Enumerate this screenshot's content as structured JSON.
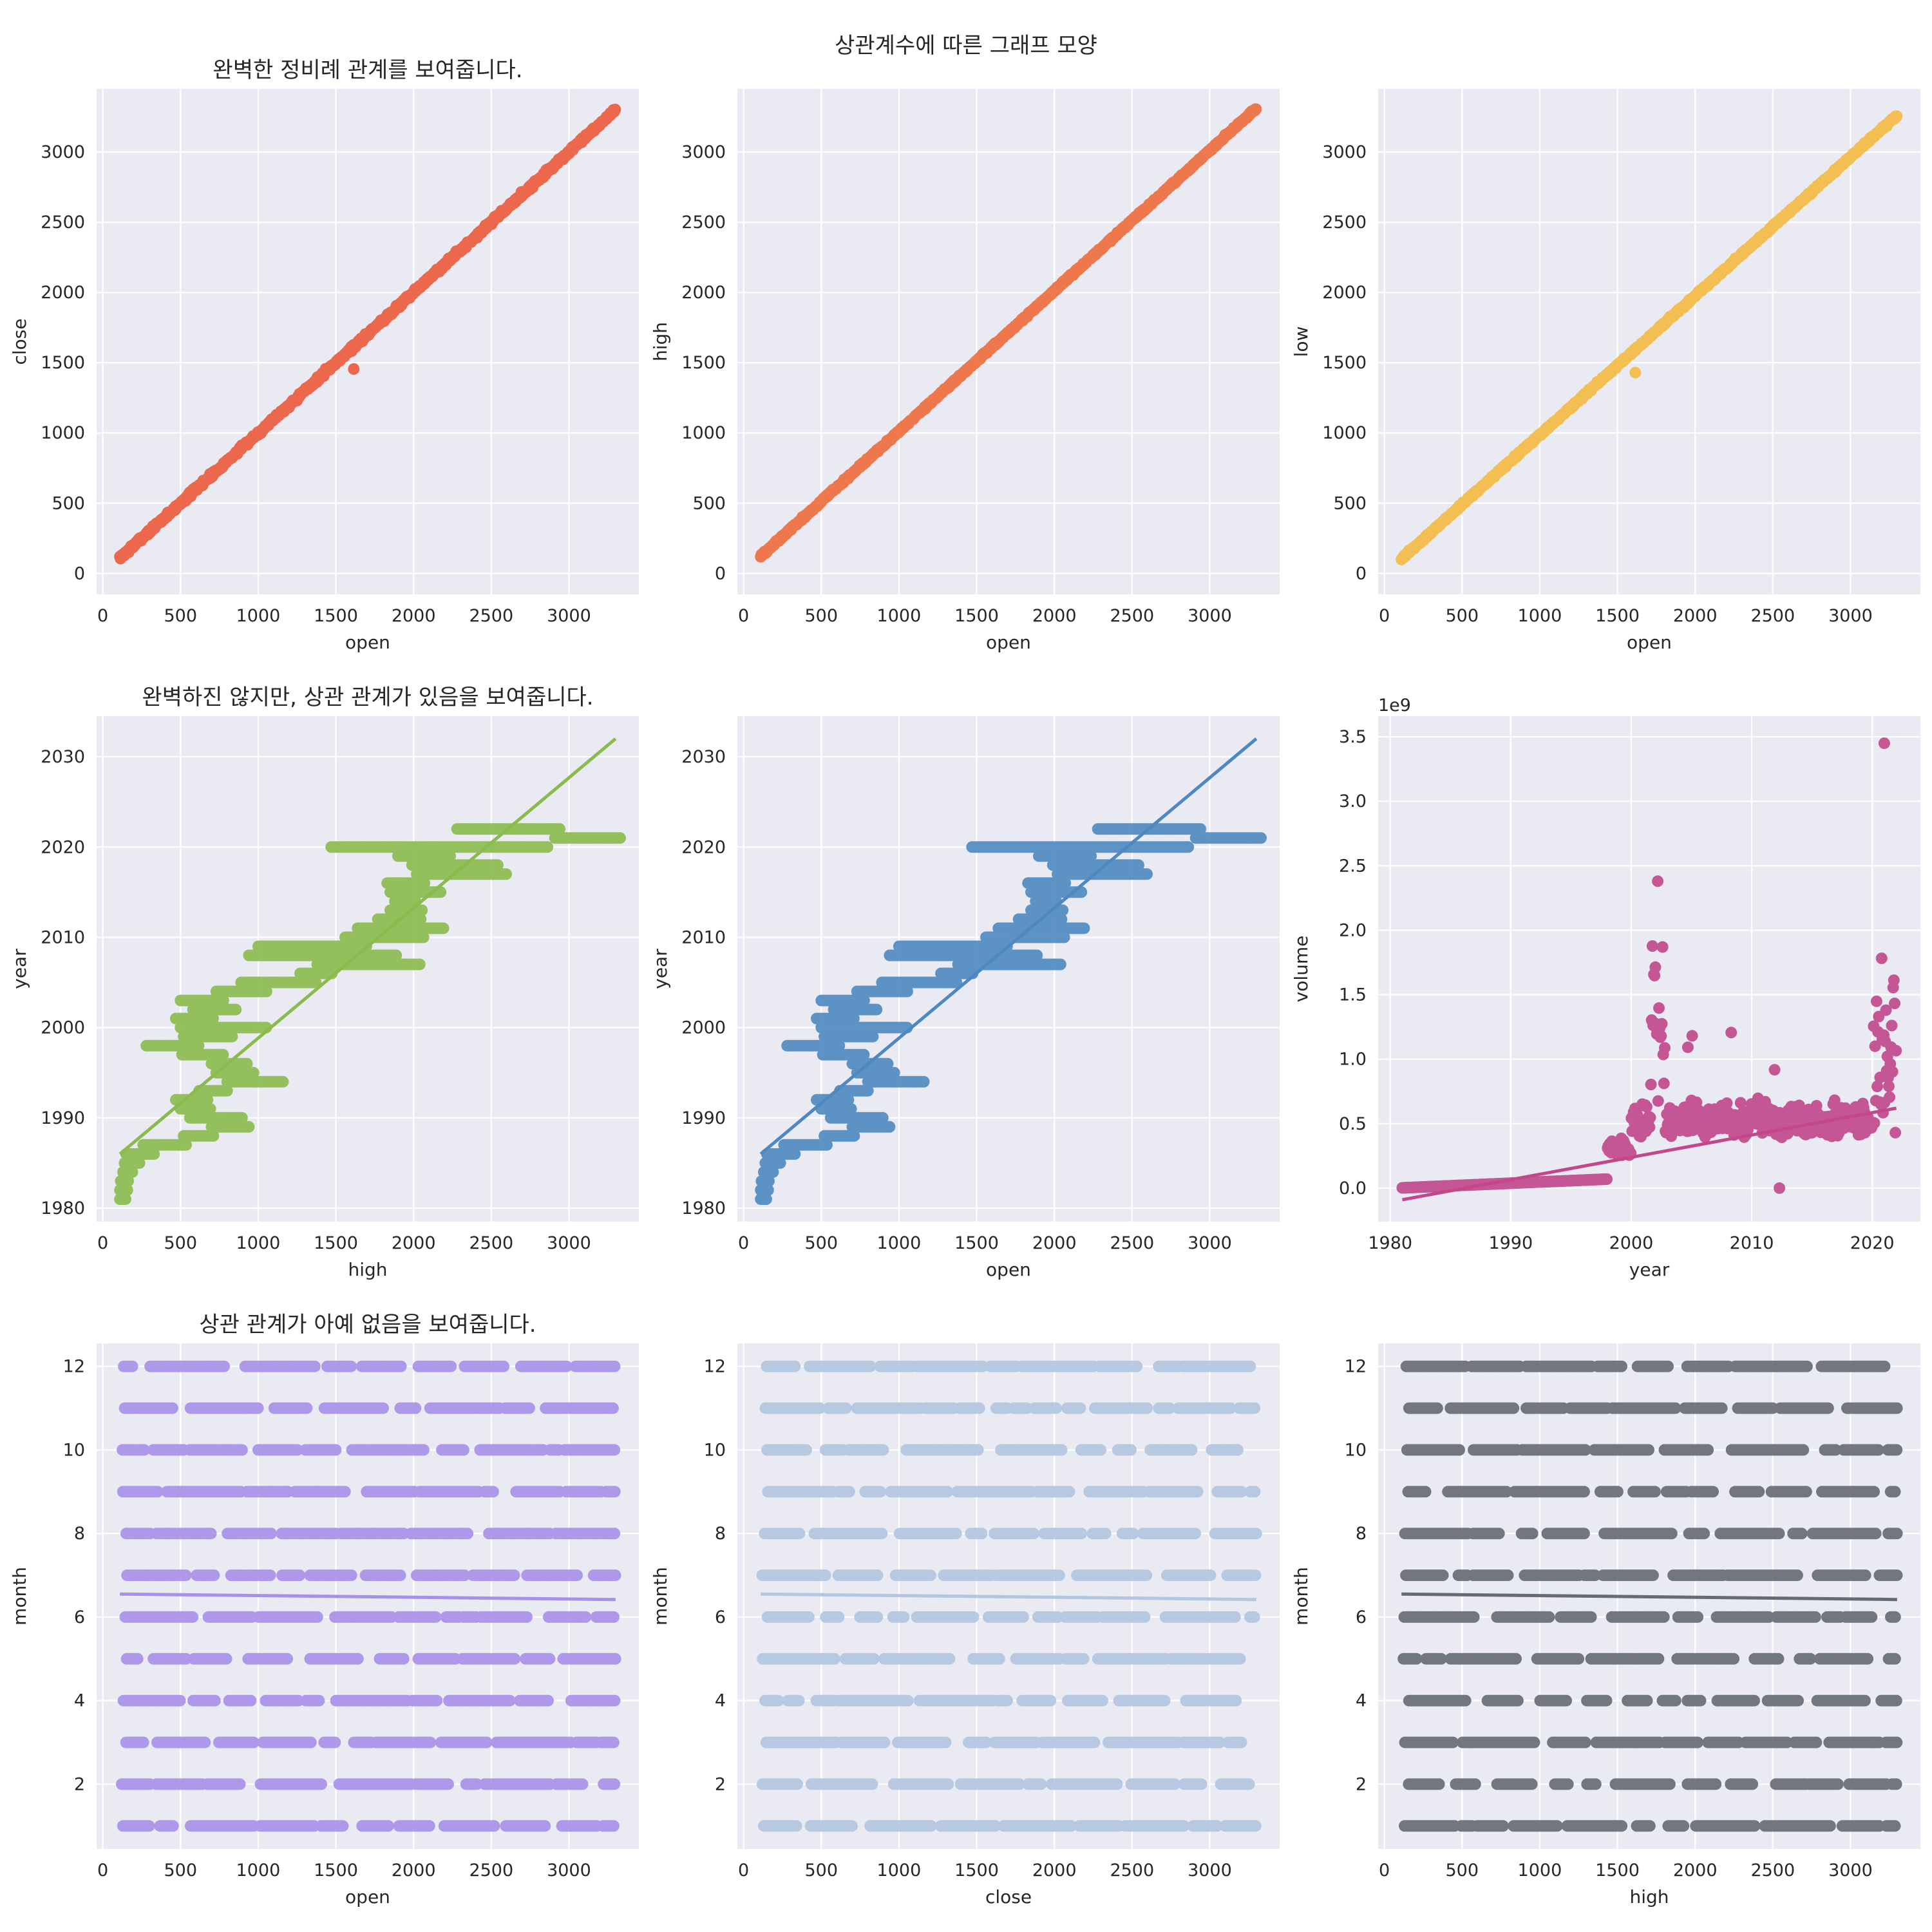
{
  "figure": {
    "suptitle": "상관계수에 따른 그래프 모양"
  },
  "chart_data": [
    {
      "type": "scatter",
      "title": "완벽한 정비례 관계를 보여줍니다.",
      "xlabel": "open",
      "ylabel": "close",
      "xlim": [
        -40,
        3450
      ],
      "ylim": [
        -150,
        3450
      ],
      "xticks": [
        0,
        500,
        1000,
        1500,
        2000,
        2500,
        3000
      ],
      "yticks": [
        0,
        500,
        1000,
        1500,
        2000,
        2500,
        3000
      ],
      "color": "#ec5a3c",
      "grid": true,
      "background": "#eaeaf2",
      "series": [
        {
          "kind": "linear",
          "x_range": [
            110,
            3300
          ],
          "slope": 1.0,
          "intercept": 0,
          "noise": 15
        }
      ],
      "outliers": [
        {
          "x": 1615,
          "y": 1455
        }
      ],
      "regression": null
    },
    {
      "type": "scatter",
      "title": "",
      "xlabel": "open",
      "ylabel": "high",
      "xlim": [
        -40,
        3450
      ],
      "ylim": [
        -150,
        3450
      ],
      "xticks": [
        0,
        500,
        1000,
        1500,
        2000,
        2500,
        3000
      ],
      "yticks": [
        0,
        500,
        1000,
        1500,
        2000,
        2500,
        3000
      ],
      "color": "#ef6c3c",
      "grid": true,
      "background": "#eaeaf2",
      "series": [
        {
          "kind": "linear",
          "x_range": [
            110,
            3300
          ],
          "slope": 1.0,
          "intercept": 12,
          "noise": 8
        }
      ],
      "outliers": [],
      "regression": null
    },
    {
      "type": "scatter",
      "title": "",
      "xlabel": "open",
      "ylabel": "low",
      "xlim": [
        -40,
        3450
      ],
      "ylim": [
        -150,
        3450
      ],
      "xticks": [
        0,
        500,
        1000,
        1500,
        2000,
        2500,
        3000
      ],
      "yticks": [
        0,
        500,
        1000,
        1500,
        2000,
        2500,
        3000
      ],
      "color": "#f5bb42",
      "grid": true,
      "background": "#eaeaf2",
      "series": [
        {
          "kind": "linear",
          "x_range": [
            110,
            3300
          ],
          "slope": 0.99,
          "intercept": -5,
          "noise": 9
        }
      ],
      "outliers": [
        {
          "x": 1615,
          "y": 1430
        }
      ],
      "regression": null
    },
    {
      "type": "scatter",
      "title": "완벽하진 않지만, 상관 관계가 있음을 보여줍니다.",
      "xlabel": "high",
      "ylabel": "year",
      "xlim": [
        -40,
        3450
      ],
      "ylim": [
        1978.5,
        2034.5
      ],
      "xticks": [
        0,
        500,
        1000,
        1500,
        2000,
        2500,
        3000
      ],
      "yticks": [
        1980,
        1990,
        2000,
        2010,
        2020,
        2030
      ],
      "color": "#8abb4c",
      "grid": true,
      "background": "#eaeaf2",
      "series": [
        {
          "kind": "year_bands"
        }
      ],
      "outliers": [],
      "regression": {
        "x0": 110,
        "y0": 1986.0,
        "x1": 3300,
        "y1": 2032.0
      }
    },
    {
      "type": "scatter",
      "title": "",
      "xlabel": "open",
      "ylabel": "year",
      "xlim": [
        -40,
        3450
      ],
      "ylim": [
        1978.5,
        2034.5
      ],
      "xticks": [
        0,
        500,
        1000,
        1500,
        2000,
        2500,
        3000
      ],
      "yticks": [
        1980,
        1990,
        2000,
        2010,
        2020,
        2030
      ],
      "color": "#4d89c0",
      "grid": true,
      "background": "#eaeaf2",
      "series": [
        {
          "kind": "year_bands"
        }
      ],
      "outliers": [],
      "regression": {
        "x0": 110,
        "y0": 1986.0,
        "x1": 3300,
        "y1": 2032.0
      }
    },
    {
      "type": "scatter",
      "title": "",
      "xlabel": "year",
      "ylabel": "volume",
      "offset_label": "1e9",
      "xlim": [
        1979,
        2024
      ],
      "ylim": [
        -0.26,
        3.66
      ],
      "xticks": [
        1980,
        1990,
        2000,
        2010,
        2020
      ],
      "yticks": [
        0.0,
        0.5,
        1.0,
        1.5,
        2.0,
        2.5,
        3.0,
        3.5
      ],
      "ytick_format": "0.1f",
      "color": "#c2478b",
      "grid": true,
      "background": "#eaeaf2",
      "series": [
        {
          "kind": "volume"
        }
      ],
      "outliers": [
        {
          "x": 2021.0,
          "y": 3.45
        },
        {
          "x": 2002.2,
          "y": 2.38
        },
        {
          "x": 2012.3,
          "y": 0.0
        }
      ],
      "regression": {
        "x0": 1981,
        "y0": -0.09,
        "x1": 2022,
        "y1": 0.62
      }
    },
    {
      "type": "scatter",
      "title": "상관 관계가 아예 없음을 보여줍니다.",
      "xlabel": "open",
      "ylabel": "month",
      "xlim": [
        -40,
        3450
      ],
      "ylim": [
        0.45,
        12.55
      ],
      "xticks": [
        0,
        500,
        1000,
        1500,
        2000,
        2500,
        3000
      ],
      "yticks": [
        2,
        4,
        6,
        8,
        10,
        12
      ],
      "color": "#a890ea",
      "grid": true,
      "background": "#eaeaf2",
      "series": [
        {
          "kind": "month_rows",
          "seed": 11
        }
      ],
      "outliers": [],
      "regression": {
        "x0": 110,
        "y0": 6.55,
        "x1": 3300,
        "y1": 6.42
      }
    },
    {
      "type": "scatter",
      "title": "",
      "xlabel": "close",
      "ylabel": "month",
      "xlim": [
        -40,
        3450
      ],
      "ylim": [
        0.45,
        12.55
      ],
      "xticks": [
        0,
        500,
        1000,
        1500,
        2000,
        2500,
        3000
      ],
      "yticks": [
        2,
        4,
        6,
        8,
        10,
        12
      ],
      "color": "#b2c6e0",
      "grid": true,
      "background": "#eaeaf2",
      "series": [
        {
          "kind": "month_rows",
          "seed": 23
        }
      ],
      "outliers": [],
      "regression": {
        "x0": 110,
        "y0": 6.55,
        "x1": 3300,
        "y1": 6.42
      }
    },
    {
      "type": "scatter",
      "title": "",
      "xlabel": "high",
      "ylabel": "month",
      "xlim": [
        -40,
        3450
      ],
      "ylim": [
        0.45,
        12.55
      ],
      "xticks": [
        0,
        500,
        1000,
        1500,
        2000,
        2500,
        3000
      ],
      "yticks": [
        2,
        4,
        6,
        8,
        10,
        12
      ],
      "color": "#656b73",
      "grid": true,
      "background": "#eaeaf2",
      "series": [
        {
          "kind": "month_rows",
          "seed": 37
        }
      ],
      "outliers": [],
      "regression": {
        "x0": 110,
        "y0": 6.55,
        "x1": 3300,
        "y1": 6.42
      }
    }
  ]
}
